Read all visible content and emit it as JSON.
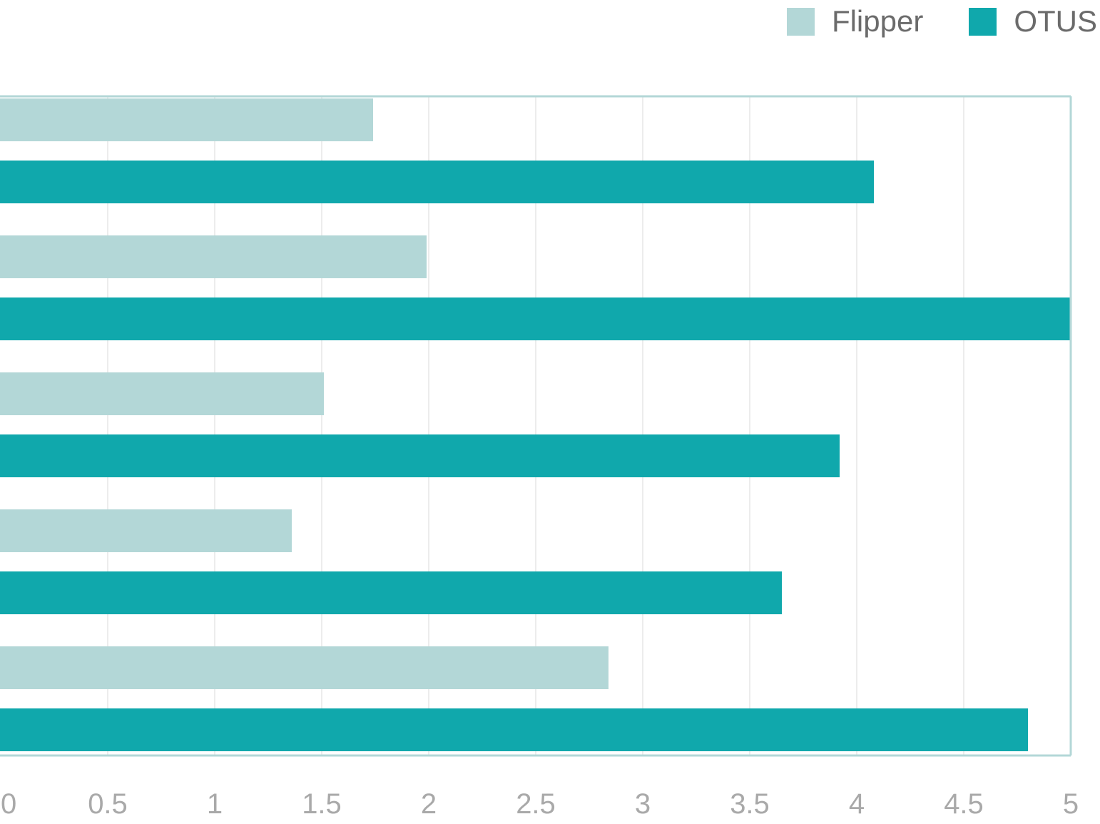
{
  "chart_data": {
    "type": "bar",
    "orientation": "horizontal",
    "categories": [
      "",
      "",
      "",
      "",
      ""
    ],
    "series": [
      {
        "name": "Flipper",
        "color": "#b3d7d7",
        "values": [
          1.74,
          1.99,
          1.51,
          1.36,
          2.84
        ]
      },
      {
        "name": "OTUS",
        "color": "#10a8ac",
        "values": [
          4.08,
          5.0,
          3.92,
          3.65,
          4.8
        ]
      }
    ],
    "xlim": [
      0,
      5
    ],
    "xticks": [
      "0",
      "0.5",
      "1",
      "1.5",
      "2",
      "2.5",
      "3",
      "3.5",
      "4",
      "4.5",
      "5"
    ],
    "title": "",
    "xlabel": "",
    "ylabel": "",
    "grid": "vertical",
    "legend_position": "top-right",
    "axis_color": "#b3d7d7",
    "grid_color": "#ececec",
    "tick_label_color": "#a9a9a9"
  }
}
